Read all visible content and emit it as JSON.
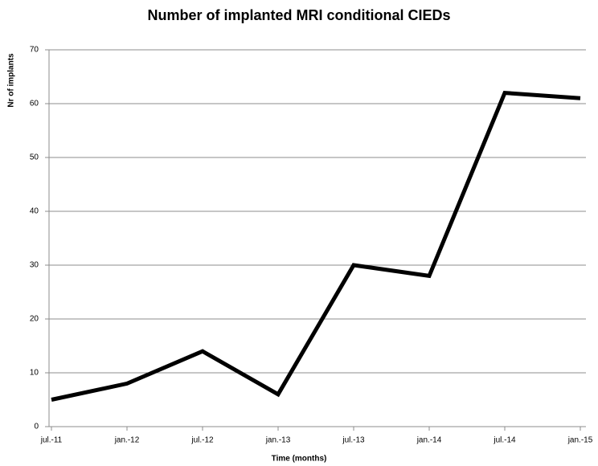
{
  "chart_data": {
    "type": "line",
    "title": "Number of implanted MRI conditional CIEDs",
    "x_label": "Time (months)",
    "y_label": "Nr of implants",
    "categories": [
      "jul.-11",
      "jan.-12",
      "jul.-12",
      "jan.-13",
      "jul.-13",
      "jan.-14",
      "jul.-14",
      "jan.-15"
    ],
    "series": [
      {
        "name": "Nr of implants",
        "color": "#000000",
        "values": [
          5,
          8,
          14,
          6,
          30,
          28,
          62,
          61
        ]
      }
    ],
    "ylim": [
      0,
      70
    ],
    "yticks": [
      0,
      10,
      20,
      30,
      40,
      50,
      60,
      70
    ],
    "grid": true
  }
}
